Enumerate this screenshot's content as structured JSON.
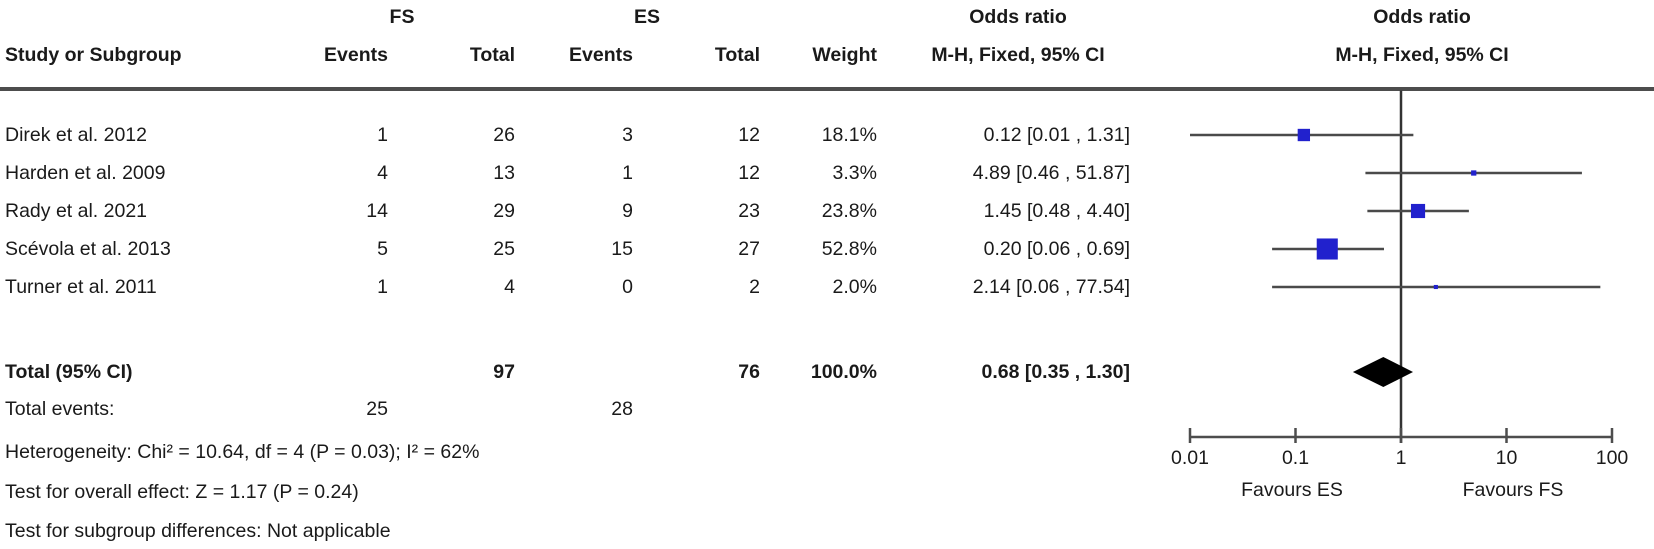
{
  "table": {
    "group_headers": {
      "fs": "FS",
      "es": "ES",
      "odds_ratio_text": "Odds ratio",
      "odds_ratio_plot": "Odds ratio"
    },
    "col_headers": {
      "study": "Study or Subgroup",
      "fs_events": "Events",
      "fs_total": "Total",
      "es_events": "Events",
      "es_total": "Total",
      "weight": "Weight",
      "mh_text": "M-H, Fixed, 95% CI",
      "mh_plot": "M-H, Fixed, 95% CI"
    },
    "total_row": {
      "label": "Total (95% CI)",
      "fs_total": "97",
      "es_total": "76",
      "weight": "100.0%",
      "or_ci": "0.68 [0.35 , 1.30]"
    },
    "total_events": {
      "label": "Total events:",
      "fs": "25",
      "es": "28"
    },
    "stats_lines": [
      "Heterogeneity: Chi² = 10.64, df = 4 (P = 0.03); I² = 62%",
      "Test for overall effect: Z = 1.17 (P = 0.24)",
      "Test for subgroup differences: Not applicable"
    ]
  },
  "chart_data": {
    "type": "forest",
    "x_scale": "log10",
    "x_ticks": [
      0.01,
      0.1,
      1,
      10,
      100
    ],
    "x_tick_labels": [
      "0.01",
      "0.1",
      "1",
      "10",
      "100"
    ],
    "xlim": [
      0.01,
      100
    ],
    "no_effect_line": 1,
    "favours_left": "Favours ES",
    "favours_right": "Favours FS",
    "marker_color": "#2121cd",
    "line_color": "#4a4a4a",
    "studies": [
      {
        "label": "Direk et al. 2012",
        "fs_events": 1,
        "fs_total": 26,
        "es_events": 3,
        "es_total": 12,
        "weight_pct": 18.1,
        "weight_display": "18.1%",
        "or": 0.12,
        "ci_low": 0.01,
        "ci_high": 1.31,
        "or_display": "0.12 [0.01 , 1.31]"
      },
      {
        "label": "Harden et al. 2009",
        "fs_events": 4,
        "fs_total": 13,
        "es_events": 1,
        "es_total": 12,
        "weight_pct": 3.3,
        "weight_display": "3.3%",
        "or": 4.89,
        "ci_low": 0.46,
        "ci_high": 51.87,
        "or_display": "4.89 [0.46 , 51.87]"
      },
      {
        "label": "Rady et al. 2021",
        "fs_events": 14,
        "fs_total": 29,
        "es_events": 9,
        "es_total": 23,
        "weight_pct": 23.8,
        "weight_display": "23.8%",
        "or": 1.45,
        "ci_low": 0.48,
        "ci_high": 4.4,
        "or_display": "1.45 [0.48 , 4.40]"
      },
      {
        "label": "Scévola et al. 2013",
        "fs_events": 5,
        "fs_total": 25,
        "es_events": 15,
        "es_total": 27,
        "weight_pct": 52.8,
        "weight_display": "52.8%",
        "or": 0.2,
        "ci_low": 0.06,
        "ci_high": 0.69,
        "or_display": "0.20 [0.06 , 0.69]"
      },
      {
        "label": "Turner et al. 2011",
        "fs_events": 1,
        "fs_total": 4,
        "es_events": 0,
        "es_total": 2,
        "weight_pct": 2.0,
        "weight_display": "2.0%",
        "or": 2.14,
        "ci_low": 0.06,
        "ci_high": 77.54,
        "or_display": "2.14 [0.06 , 77.54]"
      }
    ],
    "total": {
      "or": 0.68,
      "ci_low": 0.35,
      "ci_high": 1.3
    }
  }
}
